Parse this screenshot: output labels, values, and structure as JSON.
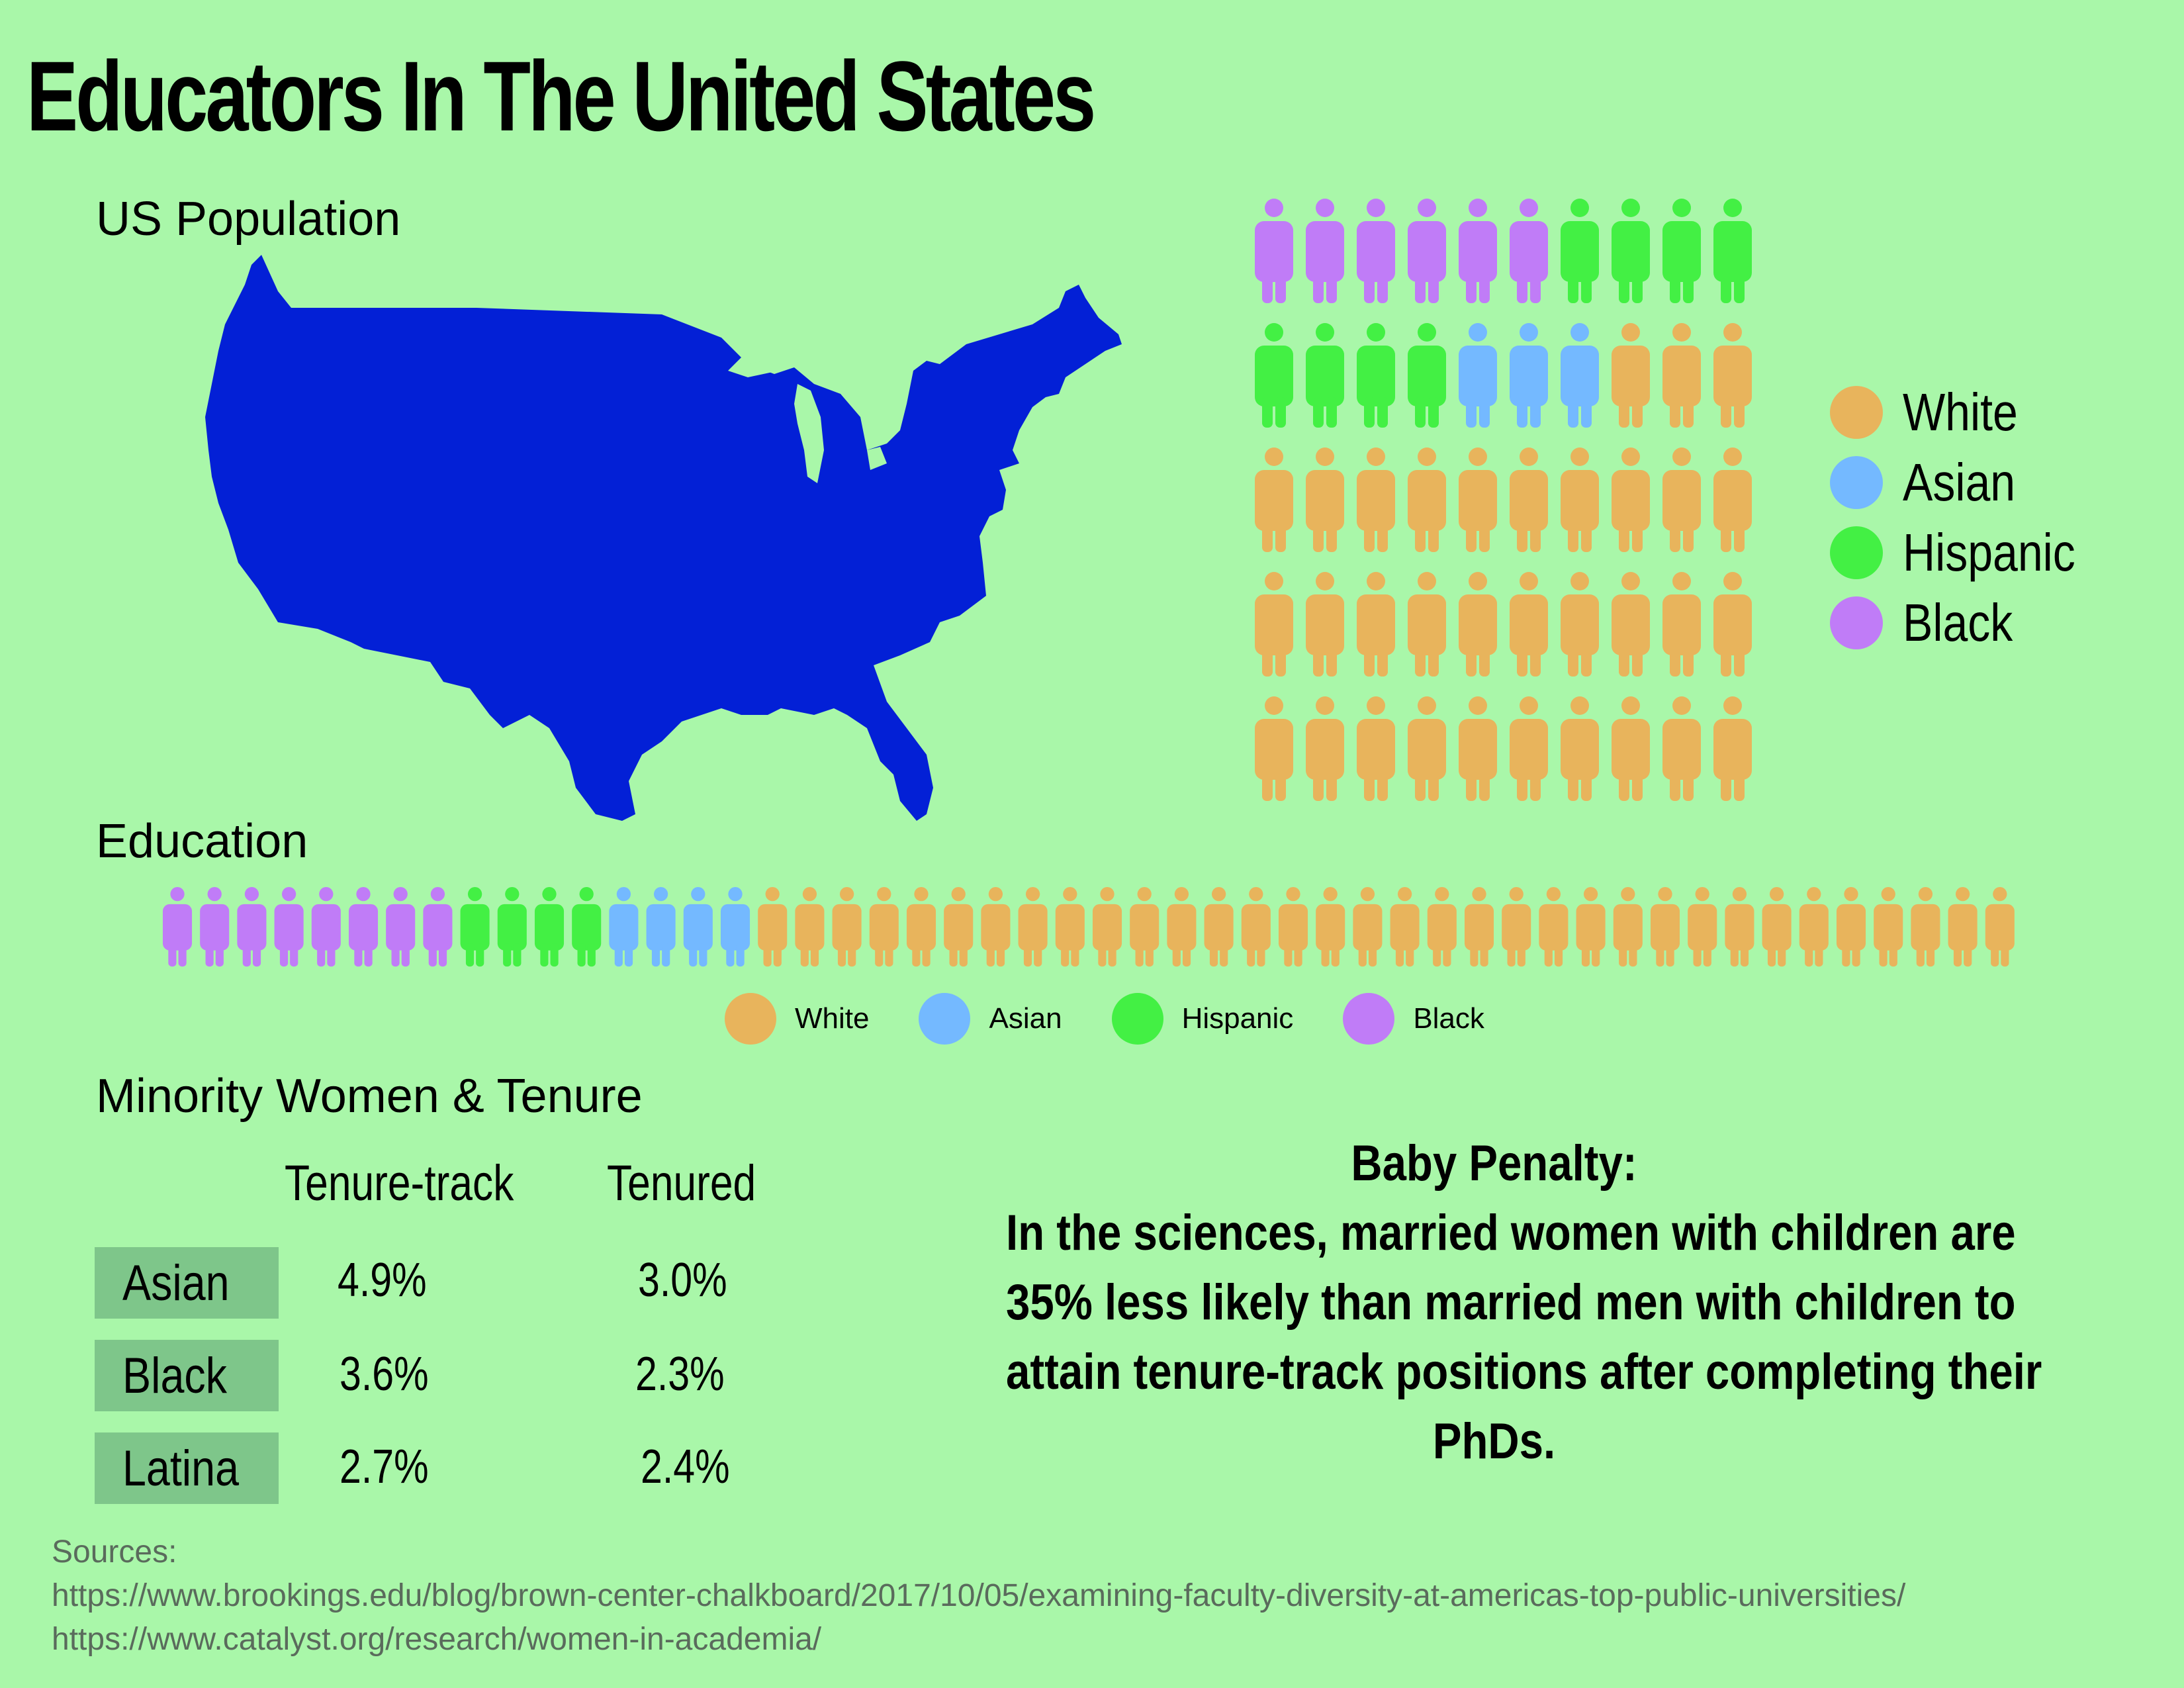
{
  "title": "Educators In The United States",
  "us_population": {
    "label": "US Population",
    "grid_colors": [
      [
        "Black",
        "Black",
        "Black",
        "Black",
        "Black",
        "Black",
        "Hispanic",
        "Hispanic",
        "Hispanic",
        "Hispanic"
      ],
      [
        "Hispanic",
        "Hispanic",
        "Hispanic",
        "Hispanic",
        "Asian",
        "Asian",
        "Asian",
        "White",
        "White",
        "White"
      ],
      [
        "White",
        "White",
        "White",
        "White",
        "White",
        "White",
        "White",
        "White",
        "White",
        "White"
      ],
      [
        "White",
        "White",
        "White",
        "White",
        "White",
        "White",
        "White",
        "White",
        "White",
        "White"
      ],
      [
        "White",
        "White",
        "White",
        "White",
        "White",
        "White",
        "White",
        "White",
        "White",
        "White"
      ]
    ],
    "legend": [
      {
        "label": "White",
        "color": "#e8b45c"
      },
      {
        "label": "Asian",
        "color": "#74b9ff"
      },
      {
        "label": "Hispanic",
        "color": "#43f044"
      },
      {
        "label": "Black",
        "color": "#c07cf7"
      }
    ]
  },
  "education": {
    "label": "Education",
    "row_counts": {
      "Black": 8,
      "Hispanic": 4,
      "Asian": 4,
      "White": 34
    },
    "legend": [
      {
        "label": "White",
        "color": "#e8b45c"
      },
      {
        "label": "Asian",
        "color": "#74b9ff"
      },
      {
        "label": "Hispanic",
        "color": "#43f044"
      },
      {
        "label": "Black",
        "color": "#c07cf7"
      }
    ]
  },
  "colors": {
    "White": "#e8b45c",
    "Asian": "#74b9ff",
    "Hispanic": "#43f044",
    "Black": "#c07cf7",
    "map": "#0320d6",
    "background": "#a9f7a9"
  },
  "tenure": {
    "label": "Minority Women & Tenure",
    "columns": [
      "Tenure-track",
      "Tenured"
    ],
    "rows": [
      {
        "group": "Asian",
        "tenure_track": "4.9%",
        "tenured": "3.0%"
      },
      {
        "group": "Black",
        "tenure_track": "3.6%",
        "tenured": "2.3%"
      },
      {
        "group": "Latina",
        "tenure_track": "2.7%",
        "tenured": "2.4%"
      }
    ]
  },
  "baby_penalty": {
    "lines": [
      "Baby Penalty:",
      "In the sciences, married women with children are",
      "35% less likely than married men with children to",
      "attain tenure-track positions after completing their",
      "PhDs."
    ]
  },
  "sources": {
    "label": "Sources:",
    "links": [
      "https://www.brookings.edu/blog/brown-center-chalkboard/2017/10/05/examining-faculty-diversity-at-americas-top-public-universities/",
      "https://www.catalyst.org/research/women-in-academia/"
    ]
  }
}
